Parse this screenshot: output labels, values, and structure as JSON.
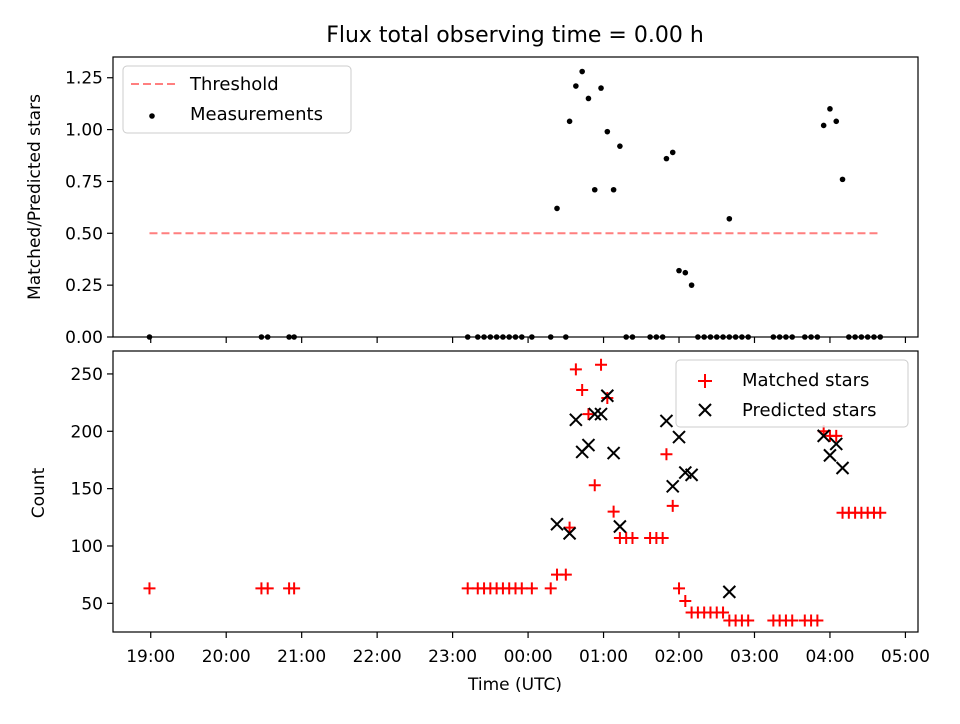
{
  "chart_data": [
    {
      "type": "scatter",
      "title": "Flux total observing time = 0.00 h",
      "xlabel": "",
      "ylabel": "Matched/Predicted stars",
      "xlim": [
        "18:30",
        "05:10"
      ],
      "ylim": [
        0,
        1.35
      ],
      "y_ticks": [
        0,
        0.25,
        0.5,
        0.75,
        1.0,
        1.25
      ],
      "y_tick_labels": [
        "0.00",
        "0.25",
        "0.50",
        "0.75",
        "1.00",
        "1.25"
      ],
      "legend_position": "top-left",
      "series": [
        {
          "name": "Threshold",
          "kind": "dashed-line",
          "color": "#ff7f7f",
          "points": [
            [
              "18:59",
              0.5
            ],
            [
              "04:40",
              0.5
            ]
          ]
        },
        {
          "name": "Measurements",
          "kind": "dots",
          "color": "#000000",
          "points": [
            [
              "18:59",
              0
            ],
            [
              "20:28",
              0
            ],
            [
              "20:33",
              0
            ],
            [
              "20:50",
              0
            ],
            [
              "20:54",
              0
            ],
            [
              "23:12",
              0
            ],
            [
              "23:20",
              0
            ],
            [
              "23:25",
              0
            ],
            [
              "23:30",
              0
            ],
            [
              "23:35",
              0
            ],
            [
              "23:40",
              0
            ],
            [
              "23:45",
              0
            ],
            [
              "23:50",
              0
            ],
            [
              "23:55",
              0
            ],
            [
              "00:03",
              0
            ],
            [
              "00:18",
              0
            ],
            [
              "00:30",
              0
            ],
            [
              "00:23",
              0.62
            ],
            [
              "00:33",
              1.04
            ],
            [
              "00:38",
              1.21
            ],
            [
              "00:43",
              1.28
            ],
            [
              "00:48",
              1.15
            ],
            [
              "00:53",
              0.71
            ],
            [
              "00:58",
              1.2
            ],
            [
              "01:03",
              0.99
            ],
            [
              "01:08",
              0.71
            ],
            [
              "01:13",
              0.92
            ],
            [
              "01:18",
              0
            ],
            [
              "01:23",
              0
            ],
            [
              "01:37",
              0
            ],
            [
              "01:42",
              0
            ],
            [
              "01:47",
              0
            ],
            [
              "01:50",
              0.86
            ],
            [
              "01:55",
              0.89
            ],
            [
              "02:00",
              0.32
            ],
            [
              "02:05",
              0.31
            ],
            [
              "02:10",
              0.25
            ],
            [
              "02:15",
              0
            ],
            [
              "02:20",
              0
            ],
            [
              "02:25",
              0
            ],
            [
              "02:30",
              0
            ],
            [
              "02:35",
              0
            ],
            [
              "02:40",
              0
            ],
            [
              "02:40",
              0.57
            ],
            [
              "02:45",
              0
            ],
            [
              "02:50",
              0
            ],
            [
              "02:55",
              0
            ],
            [
              "03:15",
              0
            ],
            [
              "03:20",
              0
            ],
            [
              "03:25",
              0
            ],
            [
              "03:30",
              0
            ],
            [
              "03:40",
              0
            ],
            [
              "03:45",
              0
            ],
            [
              "03:50",
              0
            ],
            [
              "03:55",
              1.02
            ],
            [
              "04:00",
              1.1
            ],
            [
              "04:05",
              1.04
            ],
            [
              "04:10",
              0.76
            ],
            [
              "04:15",
              0
            ],
            [
              "04:20",
              0
            ],
            [
              "04:25",
              0
            ],
            [
              "04:30",
              0
            ],
            [
              "04:35",
              0
            ],
            [
              "04:40",
              0
            ]
          ]
        }
      ]
    },
    {
      "type": "scatter",
      "title": "",
      "xlabel": "Time (UTC)",
      "ylabel": "Count",
      "xlim": [
        "18:30",
        "05:10"
      ],
      "ylim": [
        25,
        270
      ],
      "y_ticks": [
        50,
        100,
        150,
        200,
        250
      ],
      "y_tick_labels": [
        "50",
        "100",
        "150",
        "200",
        "250"
      ],
      "x_ticks": [
        "19:00",
        "20:00",
        "21:00",
        "22:00",
        "23:00",
        "00:00",
        "01:00",
        "02:00",
        "03:00",
        "04:00",
        "05:00"
      ],
      "legend_position": "top-right",
      "series": [
        {
          "name": "Matched stars",
          "kind": "plus",
          "color": "#ff0000",
          "points": [
            [
              "18:59",
              63
            ],
            [
              "20:28",
              63
            ],
            [
              "20:33",
              63
            ],
            [
              "20:50",
              63
            ],
            [
              "20:54",
              63
            ],
            [
              "23:12",
              63
            ],
            [
              "23:20",
              63
            ],
            [
              "23:25",
              63
            ],
            [
              "23:30",
              63
            ],
            [
              "23:35",
              63
            ],
            [
              "23:40",
              63
            ],
            [
              "23:45",
              63
            ],
            [
              "23:50",
              63
            ],
            [
              "23:55",
              63
            ],
            [
              "00:03",
              63
            ],
            [
              "00:18",
              63
            ],
            [
              "00:23",
              75
            ],
            [
              "00:30",
              75
            ],
            [
              "00:33",
              116
            ],
            [
              "00:38",
              254
            ],
            [
              "00:43",
              236
            ],
            [
              "00:48",
              215
            ],
            [
              "00:53",
              153
            ],
            [
              "00:58",
              258
            ],
            [
              "01:03",
              229
            ],
            [
              "01:08",
              130
            ],
            [
              "01:13",
              107
            ],
            [
              "01:18",
              107
            ],
            [
              "01:23",
              107
            ],
            [
              "01:37",
              107
            ],
            [
              "01:42",
              107
            ],
            [
              "01:47",
              107
            ],
            [
              "01:50",
              180
            ],
            [
              "01:55",
              135
            ],
            [
              "02:00",
              63
            ],
            [
              "02:05",
              52
            ],
            [
              "02:10",
              42
            ],
            [
              "02:15",
              42
            ],
            [
              "02:20",
              42
            ],
            [
              "02:25",
              42
            ],
            [
              "02:30",
              42
            ],
            [
              "02:35",
              42
            ],
            [
              "02:40",
              35
            ],
            [
              "02:45",
              35
            ],
            [
              "02:50",
              35
            ],
            [
              "02:55",
              35
            ],
            [
              "03:15",
              35
            ],
            [
              "03:20",
              35
            ],
            [
              "03:25",
              35
            ],
            [
              "03:30",
              35
            ],
            [
              "03:40",
              35
            ],
            [
              "03:45",
              35
            ],
            [
              "03:50",
              35
            ],
            [
              "03:55",
              200
            ],
            [
              "04:00",
              196
            ],
            [
              "04:05",
              196
            ],
            [
              "04:10",
              129
            ],
            [
              "04:15",
              129
            ],
            [
              "04:20",
              129
            ],
            [
              "04:25",
              129
            ],
            [
              "04:30",
              129
            ],
            [
              "04:35",
              129
            ],
            [
              "04:40",
              129
            ]
          ]
        },
        {
          "name": "Predicted stars",
          "kind": "x",
          "color": "#000000",
          "points": [
            [
              "00:23",
              119
            ],
            [
              "00:33",
              111
            ],
            [
              "00:38",
              210
            ],
            [
              "00:43",
              182
            ],
            [
              "00:48",
              188
            ],
            [
              "00:53",
              215
            ],
            [
              "00:58",
              215
            ],
            [
              "01:03",
              231
            ],
            [
              "01:08",
              181
            ],
            [
              "01:13",
              117
            ],
            [
              "01:50",
              209
            ],
            [
              "01:55",
              152
            ],
            [
              "02:00",
              195
            ],
            [
              "02:05",
              164
            ],
            [
              "02:10",
              162
            ],
            [
              "02:40",
              60
            ],
            [
              "03:55",
              196
            ],
            [
              "04:00",
              179
            ],
            [
              "04:05",
              189
            ],
            [
              "04:10",
              168
            ]
          ]
        }
      ]
    }
  ]
}
